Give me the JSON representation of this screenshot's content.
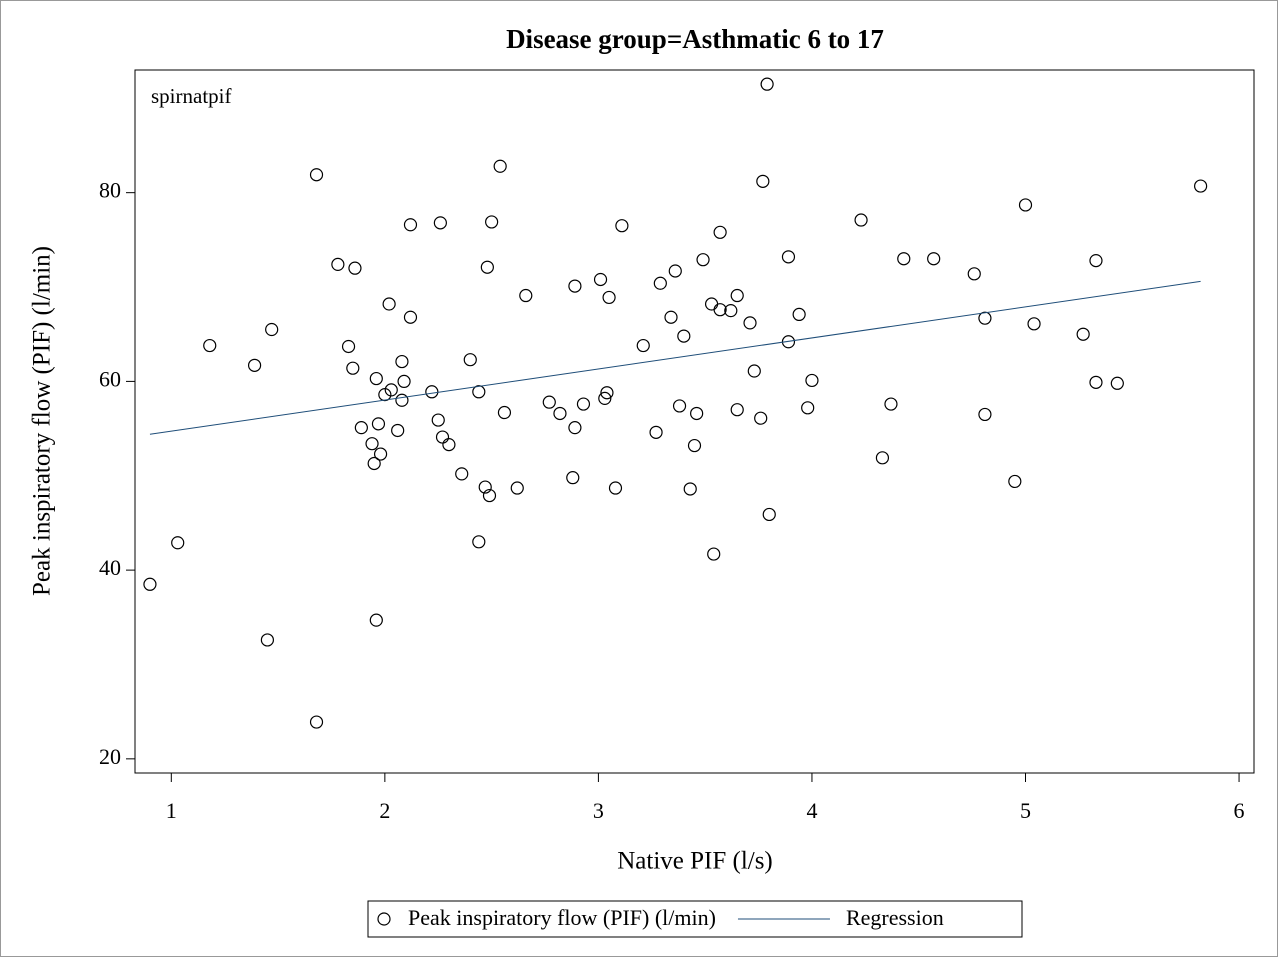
{
  "chart_data": {
    "type": "scatter",
    "title": "Disease group=Asthmatic 6 to 17",
    "x_label": "Native PIF (l/s)",
    "y_label": "Peak inspiratory flow (PIF) (l/min)",
    "annotation": "spirnatpif",
    "xlim": [
      0.83,
      6.07
    ],
    "ylim": [
      18.5,
      93
    ],
    "xticks": [
      1,
      2,
      3,
      4,
      5,
      6
    ],
    "yticks": [
      20,
      40,
      60,
      80
    ],
    "legend": "bottom",
    "series": [
      {
        "name": "Peak inspiratory flow (PIF) (l/min)",
        "type": "scatter",
        "color": "#000000",
        "x": [
          0.9,
          1.03,
          1.18,
          1.39,
          1.45,
          1.47,
          1.68,
          1.68,
          1.78,
          1.83,
          1.85,
          1.86,
          1.89,
          1.94,
          1.95,
          1.96,
          1.96,
          1.97,
          1.98,
          2.0,
          2.02,
          2.03,
          2.06,
          2.08,
          2.08,
          2.09,
          2.12,
          2.12,
          2.22,
          2.25,
          2.26,
          2.27,
          2.3,
          2.36,
          2.4,
          2.44,
          2.44,
          2.47,
          2.48,
          2.49,
          2.5,
          2.54,
          2.56,
          2.62,
          2.66,
          2.77,
          2.82,
          2.88,
          2.89,
          2.89,
          2.93,
          3.01,
          3.03,
          3.04,
          3.05,
          3.08,
          3.11,
          3.21,
          3.27,
          3.29,
          3.34,
          3.36,
          3.38,
          3.4,
          3.43,
          3.45,
          3.46,
          3.49,
          3.53,
          3.54,
          3.57,
          3.57,
          3.62,
          3.65,
          3.65,
          3.71,
          3.73,
          3.76,
          3.77,
          3.79,
          3.8,
          3.89,
          3.89,
          3.94,
          3.98,
          4.0,
          4.23,
          4.33,
          4.37,
          4.43,
          4.57,
          4.76,
          4.81,
          4.81,
          4.95,
          5.0,
          5.04,
          5.27,
          5.33,
          5.33,
          5.43,
          5.82
        ],
        "values": [
          38.5,
          42.9,
          63.8,
          61.7,
          32.6,
          65.5,
          81.9,
          23.9,
          72.4,
          63.7,
          61.4,
          72.0,
          55.1,
          53.4,
          51.3,
          60.3,
          34.7,
          55.5,
          52.3,
          58.6,
          68.2,
          59.1,
          54.8,
          62.1,
          58.0,
          60.0,
          76.6,
          66.8,
          58.9,
          55.9,
          76.8,
          54.1,
          53.3,
          50.2,
          62.3,
          58.9,
          43.0,
          48.8,
          72.1,
          47.9,
          76.9,
          82.8,
          56.7,
          48.7,
          69.1,
          57.8,
          56.6,
          49.8,
          55.1,
          70.1,
          57.6,
          70.8,
          58.2,
          58.8,
          68.9,
          48.7,
          76.5,
          63.8,
          54.6,
          70.4,
          66.8,
          71.7,
          57.4,
          64.8,
          48.6,
          53.2,
          56.6,
          72.9,
          68.2,
          41.7,
          75.8,
          67.6,
          67.5,
          57.0,
          69.1,
          66.2,
          61.1,
          56.1,
          81.2,
          91.5,
          45.9,
          73.2,
          64.2,
          67.1,
          57.2,
          60.1,
          77.1,
          51.9,
          57.6,
          73.0,
          73.0,
          71.4,
          66.7,
          56.5,
          49.4,
          78.7,
          66.1,
          65.0,
          72.8,
          59.9,
          59.8,
          80.7
        ]
      },
      {
        "name": "Regression",
        "type": "line",
        "color": "#1f4e79",
        "x": [
          0.9,
          5.82
        ],
        "values": [
          54.4,
          70.6
        ]
      }
    ]
  }
}
